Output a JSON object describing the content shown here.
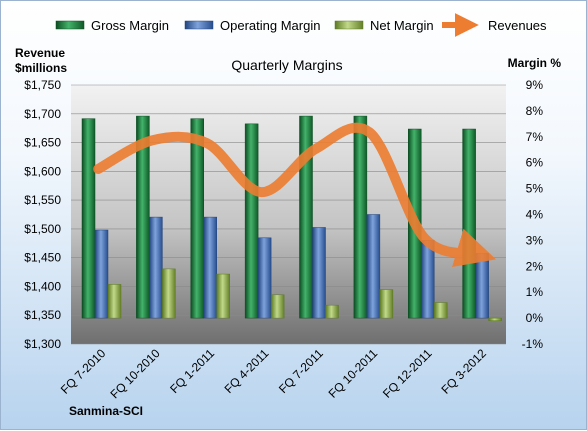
{
  "chart_data": {
    "type": "bar",
    "title": "Quarterly Margins",
    "company": "Sanmina-SCI",
    "categories": [
      "FQ 7-2010",
      "FQ 10-2010",
      "FQ 1-2011",
      "FQ 4-2011",
      "FQ 7-2011",
      "FQ 10-2011",
      "FQ 12-2011",
      "FQ 3-2012"
    ],
    "left_axis": {
      "title_line1": "Revenue",
      "title_line2": "$millions",
      "ticks": [
        "$1,300",
        "$1,350",
        "$1,400",
        "$1,450",
        "$1,500",
        "$1,550",
        "$1,600",
        "$1,650",
        "$1,700",
        "$1,750"
      ],
      "ylim": [
        1300,
        1750
      ]
    },
    "right_axis": {
      "title": "Margin %",
      "ticks": [
        "-1%",
        "0%",
        "1%",
        "2%",
        "3%",
        "4%",
        "5%",
        "6%",
        "7%",
        "8%",
        "9%"
      ],
      "ylim": [
        -1,
        9
      ]
    },
    "series": [
      {
        "name": "Gross Margin",
        "axis": "right",
        "kind": "bar",
        "color": "#1e7f3c",
        "values": [
          7.7,
          7.8,
          7.7,
          7.5,
          7.8,
          7.8,
          7.3,
          7.3
        ]
      },
      {
        "name": "Operating Margin",
        "axis": "right",
        "kind": "bar",
        "color": "#3f6bb5",
        "values": [
          3.4,
          3.9,
          3.9,
          3.1,
          3.5,
          4.0,
          3.0,
          2.5
        ]
      },
      {
        "name": "Net Margin",
        "axis": "right",
        "kind": "bar",
        "color": "#8fb043",
        "values": [
          1.3,
          1.9,
          1.7,
          0.9,
          0.5,
          1.1,
          0.6,
          -0.1
        ]
      },
      {
        "name": "Revenues",
        "axis": "left",
        "kind": "line",
        "color": "#ed7d31",
        "values": [
          1604,
          1654,
          1649,
          1564,
          1639,
          1667,
          1484,
          1456
        ]
      }
    ],
    "grid": true,
    "legend_position": "top"
  }
}
